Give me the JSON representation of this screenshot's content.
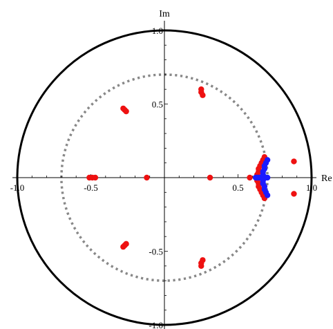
{
  "chart_data": {
    "type": "scatter",
    "title": "",
    "xlabel": "Re",
    "ylabel": "Im",
    "xlim": [
      -1.0,
      1.0
    ],
    "ylim": [
      -1.0,
      1.0
    ],
    "x_ticks": [
      {
        "value": -1.0,
        "label": "-1.0"
      },
      {
        "value": -0.5,
        "label": "-0.5"
      },
      {
        "value": 0.5,
        "label": "0.5"
      },
      {
        "value": 1.0,
        "label": "1.0"
      }
    ],
    "y_ticks": [
      {
        "value": 1.0,
        "label": "1.0"
      },
      {
        "value": 0.5,
        "label": "0.5"
      },
      {
        "value": -0.5,
        "label": "-0.5"
      },
      {
        "value": -1.0,
        "label": "-1.0"
      }
    ],
    "circles": [
      {
        "radius": 1.0,
        "style": "solid",
        "color": "#000000"
      },
      {
        "radius": 0.7,
        "style": "dotted",
        "color": "#888888"
      }
    ],
    "series": [
      {
        "color": "#ee1111",
        "points": [
          [
            0.88,
            0.11
          ],
          [
            0.88,
            -0.11
          ],
          [
            0.25,
            0.6
          ],
          [
            0.25,
            0.58
          ],
          [
            0.26,
            0.56
          ],
          [
            0.25,
            -0.6
          ],
          [
            0.25,
            -0.58
          ],
          [
            0.26,
            -0.56
          ],
          [
            -0.28,
            0.47
          ],
          [
            -0.27,
            0.46
          ],
          [
            -0.26,
            0.45
          ],
          [
            -0.28,
            -0.47
          ],
          [
            -0.27,
            -0.46
          ],
          [
            -0.26,
            -0.45
          ],
          [
            -0.51,
            0.0
          ],
          [
            -0.49,
            0.0
          ],
          [
            -0.47,
            0.0
          ],
          [
            -0.12,
            0.0
          ],
          [
            0.31,
            0.0
          ],
          [
            0.58,
            0.0
          ],
          [
            0.68,
            0.14
          ],
          [
            0.67,
            0.12
          ],
          [
            0.66,
            0.1
          ],
          [
            0.65,
            0.08
          ],
          [
            0.64,
            0.06
          ],
          [
            0.64,
            0.04
          ],
          [
            0.63,
            0.02
          ],
          [
            0.68,
            -0.14
          ],
          [
            0.67,
            -0.12
          ],
          [
            0.66,
            -0.1
          ],
          [
            0.65,
            -0.08
          ],
          [
            0.64,
            -0.06
          ],
          [
            0.64,
            -0.04
          ],
          [
            0.63,
            -0.02
          ]
        ]
      },
      {
        "color": "#1a1aff",
        "points": [
          [
            0.62,
            0.0
          ],
          [
            0.63,
            0.0
          ],
          [
            0.64,
            0.0
          ],
          [
            0.65,
            0.0
          ],
          [
            0.66,
            0.0
          ],
          [
            0.67,
            0.0
          ],
          [
            0.68,
            0.0
          ],
          [
            0.69,
            0.0
          ],
          [
            0.7,
            0.0
          ],
          [
            0.67,
            0.02
          ],
          [
            0.67,
            0.04
          ],
          [
            0.68,
            0.06
          ],
          [
            0.68,
            0.08
          ],
          [
            0.69,
            0.1
          ],
          [
            0.7,
            0.12
          ],
          [
            0.67,
            -0.02
          ],
          [
            0.67,
            -0.04
          ],
          [
            0.68,
            -0.06
          ],
          [
            0.68,
            -0.08
          ],
          [
            0.69,
            -0.1
          ],
          [
            0.7,
            -0.12
          ]
        ]
      }
    ]
  }
}
